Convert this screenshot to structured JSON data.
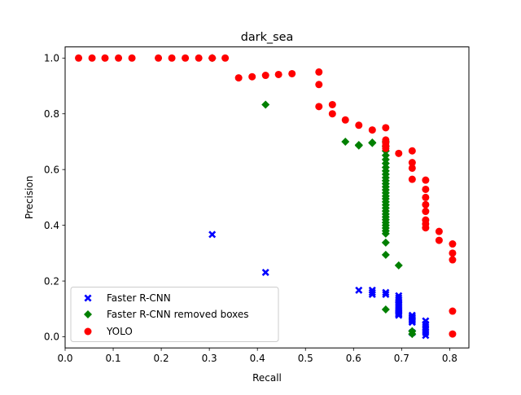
{
  "chart_data": {
    "type": "scatter",
    "title": "dark_sea",
    "xlabel": "Recall",
    "ylabel": "Precision",
    "xlim": [
      -0.0,
      0.84
    ],
    "ylim": [
      -0.04,
      1.04
    ],
    "xticks": [
      0.0,
      0.1,
      0.2,
      0.3,
      0.4,
      0.5,
      0.6,
      0.7,
      0.8
    ],
    "yticks": [
      0.0,
      0.2,
      0.4,
      0.6,
      0.8,
      1.0
    ],
    "xtick_labels": [
      "0.0",
      "0.1",
      "0.2",
      "0.3",
      "0.4",
      "0.5",
      "0.6",
      "0.7",
      "0.8"
    ],
    "ytick_labels": [
      "0.0",
      "0.2",
      "0.4",
      "0.6",
      "0.8",
      "1.0"
    ],
    "grid": false,
    "legend_position": "lower-left",
    "series": [
      {
        "name": "Faster R-CNN",
        "marker": "x",
        "color": "#0000ff",
        "points": [
          [
            0.306,
            0.367
          ],
          [
            0.417,
            0.231
          ],
          [
            0.611,
            0.167
          ],
          [
            0.639,
            0.167
          ],
          [
            0.639,
            0.159
          ],
          [
            0.639,
            0.152
          ],
          [
            0.667,
            0.159
          ],
          [
            0.667,
            0.152
          ],
          [
            0.694,
            0.147
          ],
          [
            0.694,
            0.139
          ],
          [
            0.694,
            0.132
          ],
          [
            0.694,
            0.125
          ],
          [
            0.694,
            0.119
          ],
          [
            0.694,
            0.114
          ],
          [
            0.694,
            0.109
          ],
          [
            0.694,
            0.104
          ],
          [
            0.694,
            0.099
          ],
          [
            0.694,
            0.094
          ],
          [
            0.694,
            0.089
          ],
          [
            0.694,
            0.085
          ],
          [
            0.694,
            0.081
          ],
          [
            0.694,
            0.077
          ],
          [
            0.722,
            0.077
          ],
          [
            0.722,
            0.072
          ],
          [
            0.722,
            0.068
          ],
          [
            0.722,
            0.064
          ],
          [
            0.722,
            0.06
          ],
          [
            0.722,
            0.056
          ],
          [
            0.722,
            0.052
          ],
          [
            0.722,
            0.015
          ],
          [
            0.75,
            0.057
          ],
          [
            0.75,
            0.045
          ],
          [
            0.75,
            0.035
          ],
          [
            0.75,
            0.025
          ],
          [
            0.75,
            0.015
          ],
          [
            0.75,
            0.005
          ]
        ]
      },
      {
        "name": "Faster R-CNN removed boxes",
        "marker": "D",
        "color": "#008000",
        "points": [
          [
            0.306,
            1.0
          ],
          [
            0.417,
            0.833
          ],
          [
            0.583,
            0.7
          ],
          [
            0.611,
            0.688
          ],
          [
            0.611,
            0.686
          ],
          [
            0.639,
            0.697
          ],
          [
            0.639,
            0.695
          ],
          [
            0.667,
            0.7
          ],
          [
            0.667,
            0.683
          ],
          [
            0.667,
            0.667
          ],
          [
            0.667,
            0.651
          ],
          [
            0.667,
            0.636
          ],
          [
            0.667,
            0.622
          ],
          [
            0.667,
            0.608
          ],
          [
            0.667,
            0.595
          ],
          [
            0.667,
            0.583
          ],
          [
            0.667,
            0.571
          ],
          [
            0.667,
            0.56
          ],
          [
            0.667,
            0.549
          ],
          [
            0.667,
            0.538
          ],
          [
            0.667,
            0.527
          ],
          [
            0.667,
            0.516
          ],
          [
            0.667,
            0.505
          ],
          [
            0.667,
            0.495
          ],
          [
            0.667,
            0.484
          ],
          [
            0.667,
            0.473
          ],
          [
            0.667,
            0.462
          ],
          [
            0.667,
            0.451
          ],
          [
            0.667,
            0.44
          ],
          [
            0.667,
            0.43
          ],
          [
            0.667,
            0.42
          ],
          [
            0.667,
            0.41
          ],
          [
            0.667,
            0.4
          ],
          [
            0.667,
            0.39
          ],
          [
            0.667,
            0.38
          ],
          [
            0.667,
            0.37
          ],
          [
            0.667,
            0.338
          ],
          [
            0.667,
            0.294
          ],
          [
            0.667,
            0.098
          ],
          [
            0.694,
            0.256
          ],
          [
            0.722,
            0.02
          ],
          [
            0.722,
            0.01
          ]
        ]
      },
      {
        "name": "YOLO",
        "marker": "o",
        "color": "#ff0000",
        "points": [
          [
            0.028,
            1.0
          ],
          [
            0.056,
            1.0
          ],
          [
            0.083,
            1.0
          ],
          [
            0.111,
            1.0
          ],
          [
            0.139,
            1.0
          ],
          [
            0.194,
            1.0
          ],
          [
            0.222,
            1.0
          ],
          [
            0.25,
            1.0
          ],
          [
            0.278,
            1.0
          ],
          [
            0.306,
            1.0
          ],
          [
            0.333,
            1.0
          ],
          [
            0.361,
            0.929
          ],
          [
            0.389,
            0.933
          ],
          [
            0.417,
            0.938
          ],
          [
            0.444,
            0.941
          ],
          [
            0.472,
            0.944
          ],
          [
            0.528,
            0.95
          ],
          [
            0.528,
            0.905
          ],
          [
            0.528,
            0.826
          ],
          [
            0.556,
            0.833
          ],
          [
            0.556,
            0.8
          ],
          [
            0.583,
            0.778
          ],
          [
            0.611,
            0.759
          ],
          [
            0.639,
            0.742
          ],
          [
            0.667,
            0.75
          ],
          [
            0.667,
            0.706
          ],
          [
            0.667,
            0.696
          ],
          [
            0.667,
            0.686
          ],
          [
            0.667,
            0.676
          ],
          [
            0.694,
            0.658
          ],
          [
            0.722,
            0.667
          ],
          [
            0.722,
            0.625
          ],
          [
            0.722,
            0.605
          ],
          [
            0.722,
            0.565
          ],
          [
            0.75,
            0.562
          ],
          [
            0.75,
            0.529
          ],
          [
            0.75,
            0.5
          ],
          [
            0.75,
            0.474
          ],
          [
            0.75,
            0.45
          ],
          [
            0.75,
            0.419
          ],
          [
            0.75,
            0.405
          ],
          [
            0.75,
            0.391
          ],
          [
            0.778,
            0.378
          ],
          [
            0.778,
            0.346
          ],
          [
            0.806,
            0.333
          ],
          [
            0.806,
            0.3
          ],
          [
            0.806,
            0.276
          ],
          [
            0.806,
            0.092
          ],
          [
            0.806,
            0.01
          ]
        ]
      }
    ]
  }
}
